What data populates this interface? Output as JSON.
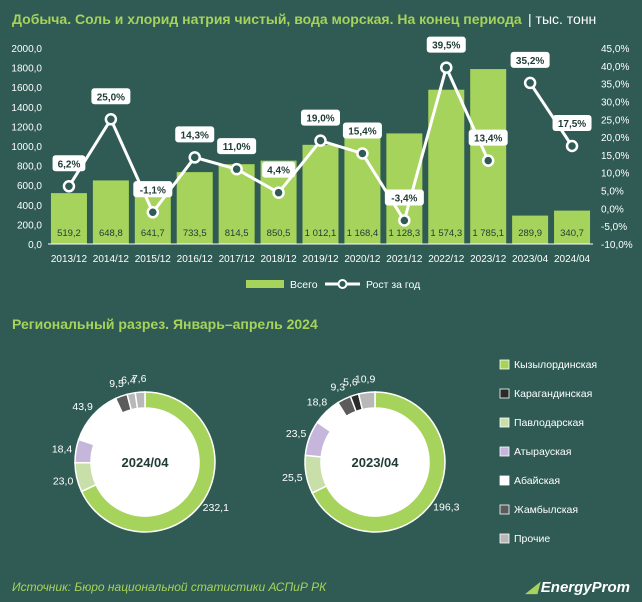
{
  "header": {
    "title": "Добыча. Соль и хлорид натрия чистый, вода морская. На конец периода",
    "unit": "| тыс. тонн"
  },
  "chart_data": [
    {
      "type": "bar",
      "categories": [
        "2013/12",
        "2014/12",
        "2015/12",
        "2016/12",
        "2017/12",
        "2018/12",
        "2019/12",
        "2020/12",
        "2021/12",
        "2022/12",
        "2023/12",
        "2023/04",
        "2024/04"
      ],
      "series": [
        {
          "name": "Всего",
          "values": [
            519.2,
            648.8,
            641.7,
            733.5,
            814.5,
            850.5,
            1012.1,
            1168.4,
            1128.3,
            1574.3,
            1785.1,
            289.9,
            340.7
          ],
          "labels": [
            "519,2",
            "648,8",
            "641,7",
            "733,5",
            "814,5",
            "850,5",
            "1 012,1",
            "1 168,4",
            "1 128,3",
            "1 574,3",
            "1 785,1",
            "289,9",
            "340,7"
          ]
        },
        {
          "name": "Рост за год",
          "values": [
            6.2,
            25.0,
            -1.1,
            14.3,
            11.0,
            4.4,
            19.0,
            15.4,
            -3.4,
            39.5,
            13.4,
            35.2,
            17.5
          ],
          "labels": [
            "6,2%",
            "25,0%",
            "-1,1%",
            "14,3%",
            "11,0%",
            "4,4%",
            "19,0%",
            "15,4%",
            "-3,4%",
            "39,5%",
            "13,4%",
            "35,2%",
            "17,5%"
          ],
          "axis": "right"
        }
      ],
      "ylim": [
        0,
        2000
      ],
      "yticks": [
        "0,0",
        "200,0",
        "400,0",
        "600,0",
        "800,0",
        "1000,0",
        "1200,0",
        "1400,0",
        "1600,0",
        "1800,0",
        "2000,0"
      ],
      "y2lim": [
        -10,
        45
      ],
      "y2ticks": [
        "-10,0%",
        "-5,0%",
        "0,0%",
        "5,0%",
        "10,0%",
        "15,0%",
        "20,0%",
        "25,0%",
        "30,0%",
        "35,0%",
        "40,0%",
        "45,0%"
      ],
      "grid": false,
      "legend": "bottom",
      "colors": {
        "bar": "#a6d35b",
        "line": "#ffffff",
        "bg": "#2f5b54"
      }
    },
    {
      "type": "pie",
      "center_label": "2024/04",
      "slices": [
        {
          "name": "Кызылординская",
          "value": 232.1,
          "label": "232,1"
        },
        {
          "name": "Карагандинская",
          "value": 0,
          "label": ""
        },
        {
          "name": "Павлодарская",
          "value": 23.0,
          "label": "23,0"
        },
        {
          "name": "Атырауская",
          "value": 18.4,
          "label": "18,4"
        },
        {
          "name": "Абайская",
          "value": 43.9,
          "label": "43,9"
        },
        {
          "name": "Жамбылская",
          "value": 9.5,
          "label": "9,5"
        },
        {
          "name": "Прочие",
          "value": 6.4,
          "label": "6,4"
        },
        {
          "name": "Прочие",
          "value": 7.6,
          "label": "7,6"
        }
      ]
    },
    {
      "type": "pie",
      "center_label": "2023/04",
      "slices": [
        {
          "name": "Кызылординская",
          "value": 196.3,
          "label": "196,3"
        },
        {
          "name": "Павлодарская",
          "value": 25.5,
          "label": "25,5"
        },
        {
          "name": "Атырауская",
          "value": 23.5,
          "label": "23,5"
        },
        {
          "name": "Абайская",
          "value": 18.8,
          "label": "18,8"
        },
        {
          "name": "Жамбылская",
          "value": 9.3,
          "label": "9,3"
        },
        {
          "name": "Карагандинская",
          "value": 5.6,
          "label": "5,6"
        },
        {
          "name": "Прочие",
          "value": 10.9,
          "label": "10,9"
        }
      ]
    }
  ],
  "section2": {
    "title": "Региональный разрез. Январь–апрель 2024"
  },
  "legend_regions": [
    {
      "name": "Кызылординская",
      "color": "#a6d35b"
    },
    {
      "name": "Карагандинская",
      "color": "#2b2b2b"
    },
    {
      "name": "Павлодарская",
      "color": "#c8dfa9"
    },
    {
      "name": "Атырауская",
      "color": "#c6b6dc"
    },
    {
      "name": "Абайская",
      "color": "#ffffff"
    },
    {
      "name": "Жамбылская",
      "color": "#5b5b5b"
    },
    {
      "name": "Прочие",
      "color": "#b8b8b8"
    }
  ],
  "footer": {
    "source": "Источник: Бюро национальной статистики АСПиР РК",
    "brand": "EnergyProm"
  }
}
